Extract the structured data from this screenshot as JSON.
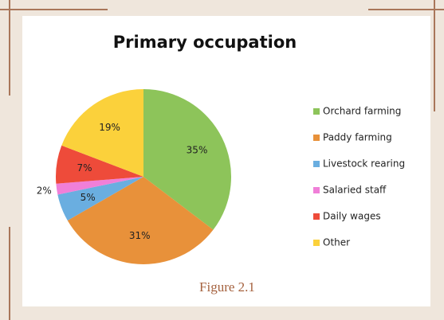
{
  "chart_data": {
    "type": "pie",
    "title": "Primary occupation",
    "categories": [
      "Orchard farming",
      "Paddy farming",
      "Livestock rearing",
      "Salaried staff",
      "Daily wages",
      "Other"
    ],
    "values": [
      35,
      31,
      5,
      2,
      7,
      19
    ],
    "value_labels": [
      "35%",
      "31%",
      "5%",
      "2%",
      "7%",
      "19%"
    ],
    "colors": [
      "#8dc45a",
      "#e8913a",
      "#6aaee0",
      "#f07fd8",
      "#ee4b3a",
      "#fbd13b"
    ],
    "legend": "right",
    "caption": "Figure 2.1"
  }
}
